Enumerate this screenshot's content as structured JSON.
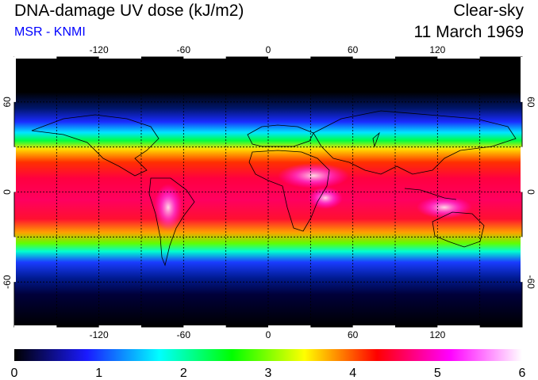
{
  "header": {
    "title": "DNA-damage UV dose (kJ/m2)",
    "subtitle": "MSR - KNMI",
    "condition": "Clear-sky",
    "date": "11 March 1969"
  },
  "map": {
    "lon_ticks": [
      "-120",
      "-60",
      "0",
      "60",
      "120"
    ],
    "lon_values": [
      -120,
      -60,
      0,
      60,
      120
    ],
    "lat_ticks": [
      "60",
      "0",
      "-60"
    ],
    "lat_values": [
      60,
      0,
      -60
    ],
    "lon_range": [
      -180,
      180
    ],
    "lat_range": [
      -90,
      90
    ],
    "grid_lon_values": [
      -150,
      -120,
      -90,
      -60,
      -30,
      0,
      30,
      60,
      90,
      120,
      150
    ],
    "grid_lat_values": [
      -60,
      -30,
      0,
      30,
      60
    ],
    "grid": "dashed"
  },
  "colorbar": {
    "tick_labels": [
      "0",
      "1",
      "2",
      "3",
      "4",
      "5",
      "6"
    ],
    "min": 0,
    "max": 6,
    "colors": [
      "#000000",
      "#1a1aff",
      "#00ffff",
      "#00ff00",
      "#ffff00",
      "#ff0000",
      "#ff00ff",
      "#ffffff"
    ]
  }
}
